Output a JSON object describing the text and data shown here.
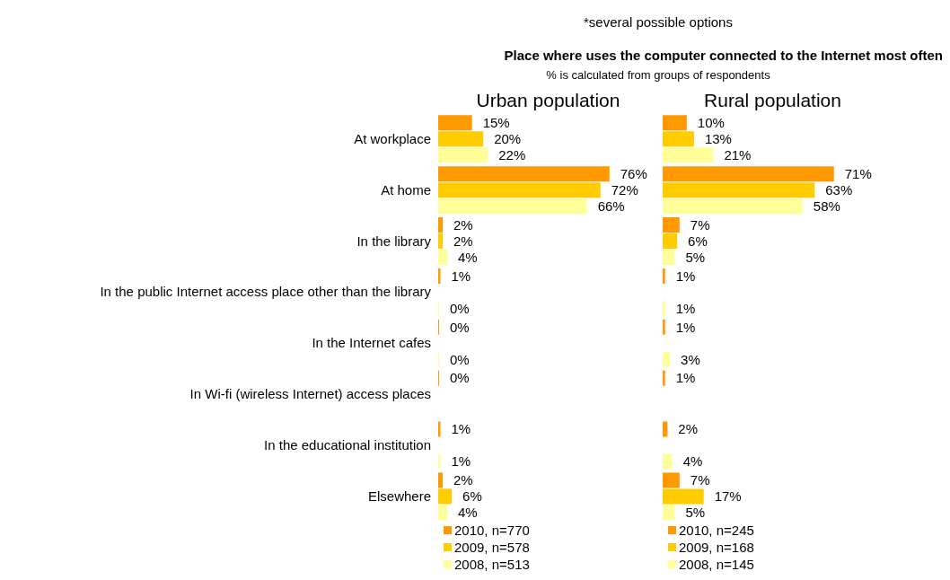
{
  "chart_data": [
    {
      "type": "other",
      "title": "Place where uses the computer connected to the Internet most often",
      "subtitle": "% is calculated from groups of respondents",
      "annotations": [
        "*several possible options"
      ]
    },
    {
      "type": "bar",
      "orientation": "horizontal",
      "title": "Urban population",
      "categories": [
        "At workplace",
        "At home",
        "In the library",
        "In the public Internet access place other than the library",
        "In the Internet cafes",
        "In Wi-fi (wireless Internet) access places",
        "In the educational institution",
        "Elsewhere"
      ],
      "legend": "bottom left",
      "series": [
        {
          "name": "2010, n=770",
          "color": "#ff9900",
          "values": [
            15,
            76,
            2,
            1,
            0,
            0,
            1,
            2
          ],
          "value_labels": [
            "15%",
            "76%",
            "2%",
            "1%",
            "0%",
            "0%",
            "1%",
            "2%"
          ]
        },
        {
          "name": "2009, n=578",
          "color": "#ffcc00",
          "values": [
            20,
            72,
            2,
            null,
            null,
            null,
            null,
            6
          ],
          "value_labels": [
            "20%",
            "72%",
            "2%",
            null,
            null,
            null,
            null,
            "6%"
          ]
        },
        {
          "name": "2008, n=513",
          "color": "#ffff99",
          "values": [
            22,
            66,
            4,
            0,
            0,
            null,
            1,
            4
          ],
          "value_labels": [
            "22%",
            "66%",
            "4%",
            "0%",
            "0%",
            null,
            "1%",
            "4%"
          ]
        }
      ]
    },
    {
      "type": "bar",
      "orientation": "horizontal",
      "title": "Rural population",
      "legend": "bottom left",
      "series": [
        {
          "name": "2010, n=245",
          "color": "#ff9900",
          "values": [
            10,
            71,
            7,
            1,
            1,
            1,
            2,
            7
          ],
          "value_labels": [
            "10%",
            "71%",
            "7%",
            "1%",
            "1%",
            "1%",
            "2%",
            "7%"
          ]
        },
        {
          "name": "2009, n=168",
          "color": "#ffcc00",
          "values": [
            13,
            63,
            6,
            null,
            null,
            null,
            null,
            17
          ],
          "value_labels": [
            "13%",
            "63%",
            "6%",
            null,
            null,
            null,
            null,
            "17%"
          ]
        },
        {
          "name": "2008, n=145",
          "color": "#ffff99",
          "values": [
            21,
            58,
            5,
            1,
            3,
            null,
            4,
            5
          ],
          "value_labels": [
            "21%",
            "58%",
            "5%",
            "1%",
            "3%",
            null,
            "4%",
            "5%"
          ]
        }
      ]
    }
  ]
}
